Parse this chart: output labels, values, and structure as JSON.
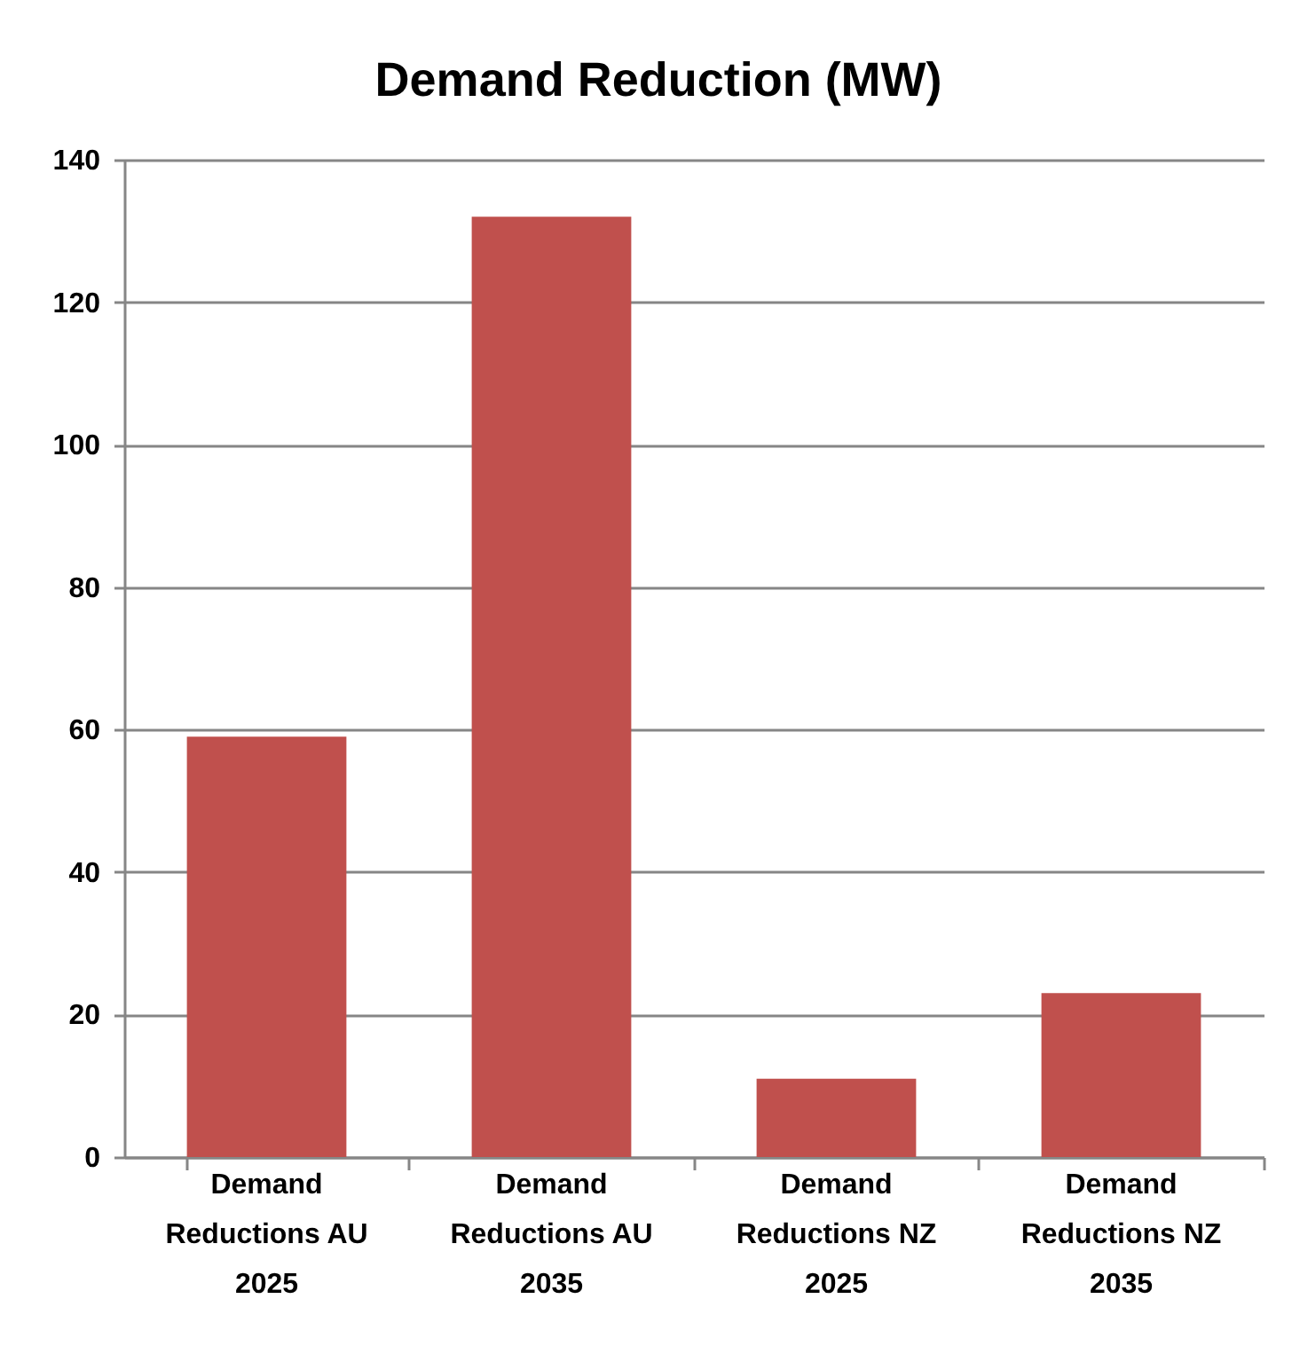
{
  "chart_data": {
    "type": "bar",
    "title": "Demand Reduction (MW)",
    "categories": [
      "Demand Reductions AU 2025",
      "Demand Reductions AU 2035",
      "Demand Reductions NZ 2025",
      "Demand Reductions NZ 2035"
    ],
    "values": [
      59,
      132,
      11,
      23
    ],
    "color": "#c0504d",
    "ylim": [
      0,
      140
    ],
    "yticks": [
      0,
      20,
      40,
      60,
      80,
      100,
      120,
      140
    ],
    "grid": "y"
  }
}
